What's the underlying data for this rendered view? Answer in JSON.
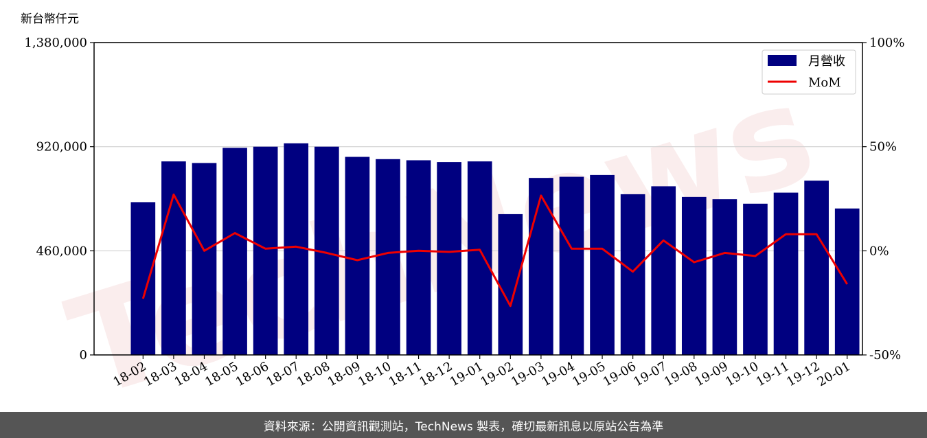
{
  "chart_data": {
    "type": "bar",
    "unit_label": "新台幣仟元",
    "categories": [
      "18-02",
      "18-03",
      "18-04",
      "18-05",
      "18-06",
      "18-07",
      "18-08",
      "18-09",
      "18-10",
      "18-11",
      "18-12",
      "19-01",
      "19-02",
      "19-03",
      "19-04",
      "19-05",
      "19-06",
      "19-07",
      "19-08",
      "19-09",
      "19-10",
      "19-11",
      "19-12",
      "20-01"
    ],
    "series": [
      {
        "name": "月營收",
        "axis": "left",
        "type": "bar",
        "color": "#000080",
        "values": [
          675000,
          855000,
          848000,
          915000,
          920000,
          935000,
          920000,
          875000,
          865000,
          860000,
          852000,
          855000,
          622000,
          782000,
          787000,
          795000,
          710000,
          745000,
          698000,
          688000,
          668000,
          717000,
          770000,
          647000
        ]
      },
      {
        "name": "MoM",
        "axis": "right",
        "type": "line",
        "color": "#ee0000",
        "values": [
          -23,
          27,
          0,
          8.5,
          1,
          2,
          -1,
          -4.5,
          -1,
          0,
          -0.5,
          0.5,
          -26.5,
          26.5,
          1,
          1,
          -10,
          5,
          -5.5,
          -1,
          -2.5,
          8,
          8,
          -16
        ]
      }
    ],
    "y_left": {
      "ylim": [
        0,
        1380000
      ],
      "ticks": [
        0,
        460000,
        920000,
        1380000
      ],
      "tick_labels": [
        "0",
        "460,000",
        "920,000",
        "1,380,000"
      ]
    },
    "y_right": {
      "ylim": [
        -50,
        100
      ],
      "ticks": [
        -50,
        0,
        50,
        100
      ],
      "tick_labels": [
        "-50%",
        "0%",
        "50%",
        "100%"
      ]
    },
    "grid": "horizontal",
    "legend_position": "top-right",
    "watermark": "TechNews"
  },
  "footer": {
    "source_note": "資料來源：公開資訊觀測站，TechNews 製表，確切最新訊息以原站公告為準"
  }
}
